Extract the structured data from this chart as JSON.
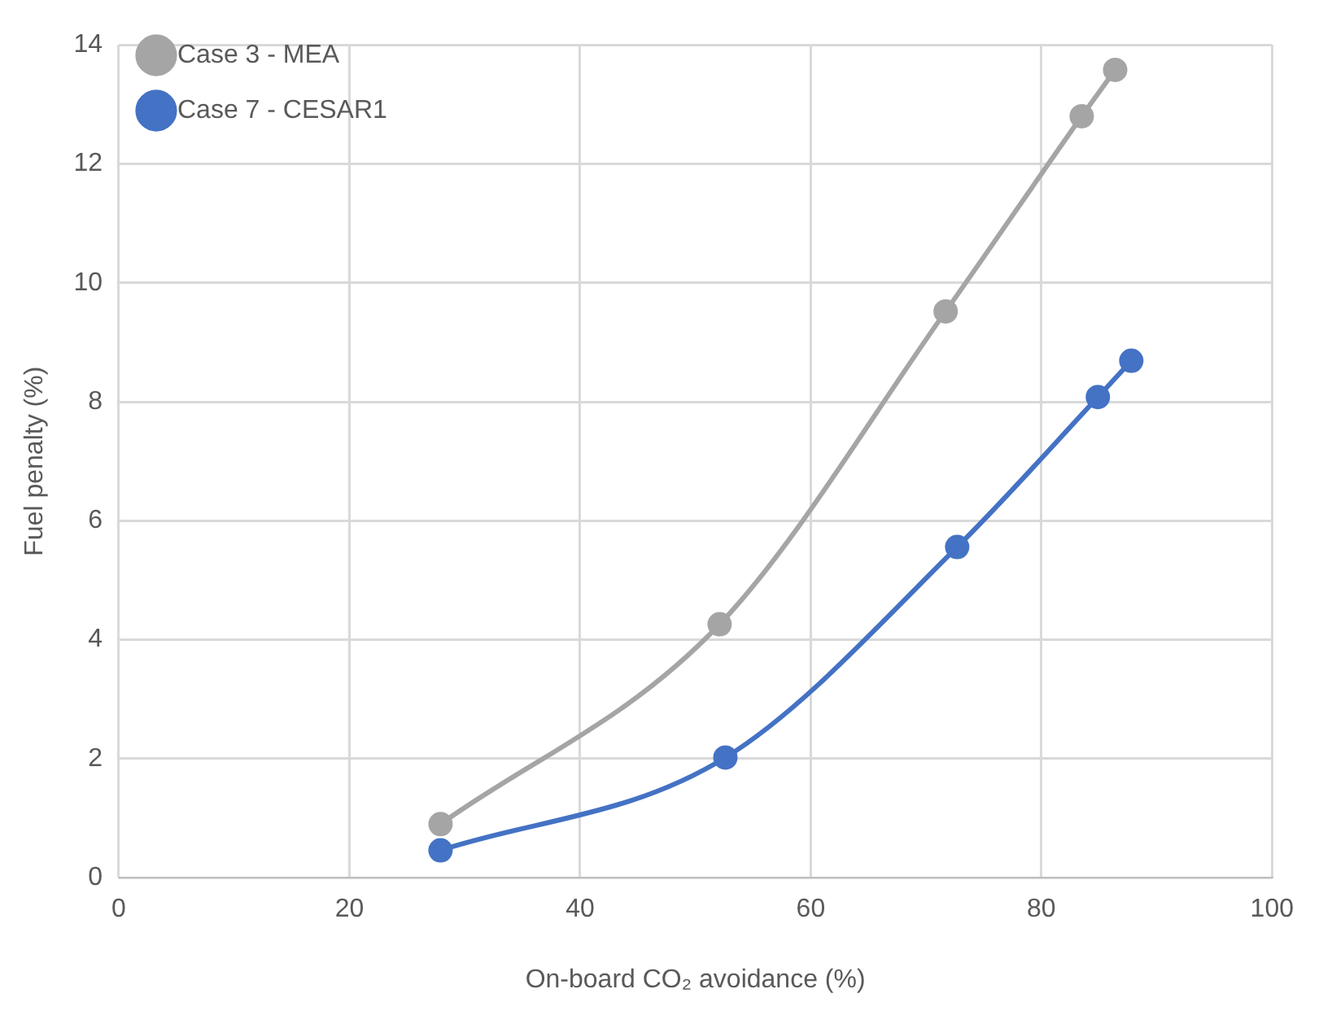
{
  "chart_data": {
    "type": "line",
    "xlabel": "On-board CO₂ avoidance (%)",
    "ylabel": "Fuel penalty (%)",
    "xlim": [
      0,
      100
    ],
    "xticks": [
      0,
      20,
      40,
      60,
      80,
      100
    ],
    "ylim": [
      0,
      14
    ],
    "yticks": [
      0,
      2,
      4,
      6,
      8,
      10,
      12,
      14
    ],
    "grid": true,
    "legend": "top left",
    "marker": "circle",
    "line_style": "solid",
    "series": [
      {
        "name": "Case 3 - MEA",
        "color": "#a5a5a5",
        "x": [
          27.9,
          52.1,
          71.7,
          83.5,
          86.4
        ],
        "values": [
          0.9,
          4.26,
          9.52,
          12.8,
          13.58
        ]
      },
      {
        "name": "Case 7 - CESAR1",
        "color": "#4472c4",
        "x": [
          27.9,
          52.6,
          72.7,
          84.9,
          87.8
        ],
        "values": [
          0.46,
          2.02,
          5.56,
          8.08,
          8.69
        ]
      }
    ]
  }
}
